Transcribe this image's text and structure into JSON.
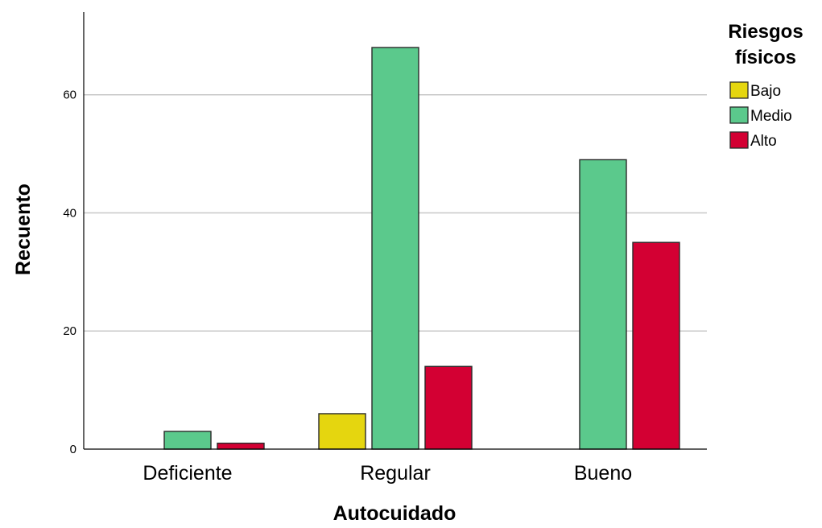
{
  "chart_data": {
    "type": "bar",
    "categories": [
      "Deficiente",
      "Regular",
      "Bueno"
    ],
    "series": [
      {
        "name": "Bajo",
        "color": "#E5D60F",
        "values": [
          0,
          6,
          0
        ]
      },
      {
        "name": "Medio",
        "color": "#5BC98C",
        "values": [
          3,
          68,
          49
        ]
      },
      {
        "name": "Alto",
        "color": "#D30033",
        "values": [
          1,
          14,
          35
        ]
      }
    ],
    "xlabel": "Autocuidado",
    "ylabel": "Recuento",
    "ylim": [
      0,
      74
    ],
    "yticks": [
      0,
      20,
      40,
      60
    ],
    "legend": {
      "title_lines": [
        "Riesgos",
        "físicos"
      ],
      "placement": "right"
    },
    "grid": true
  }
}
